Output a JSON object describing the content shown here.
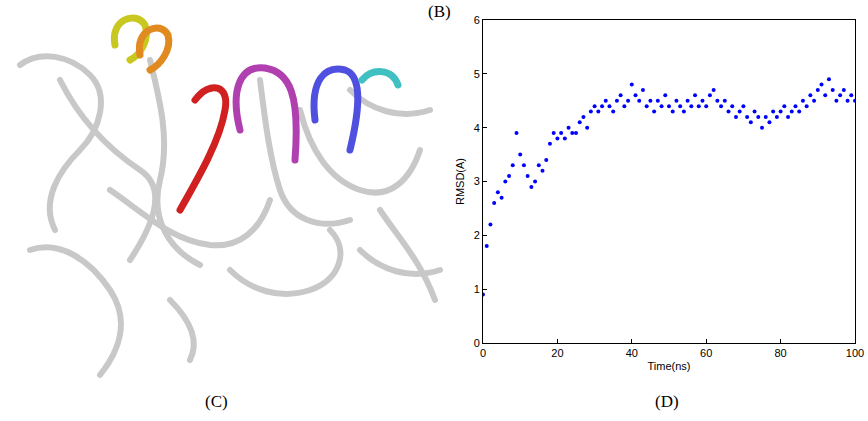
{
  "panel_labels": {
    "top": "(B)",
    "left": "(C)",
    "right": "(D)"
  },
  "chart_data": {
    "type": "scatter",
    "marker": "circle",
    "color": "#0000ff",
    "x_label": "Time(ns)",
    "y_label": "RMSD(A)",
    "x": [
      0,
      1,
      2,
      3,
      4,
      5,
      6,
      7,
      8,
      9,
      10,
      11,
      12,
      13,
      14,
      15,
      16,
      17,
      18,
      19,
      20,
      21,
      22,
      23,
      24,
      25,
      26,
      27,
      28,
      29,
      30,
      31,
      32,
      33,
      34,
      35,
      36,
      37,
      38,
      39,
      40,
      41,
      42,
      43,
      44,
      45,
      46,
      47,
      48,
      49,
      50,
      51,
      52,
      53,
      54,
      55,
      56,
      57,
      58,
      59,
      60,
      61,
      62,
      63,
      64,
      65,
      66,
      67,
      68,
      69,
      70,
      71,
      72,
      73,
      74,
      75,
      76,
      77,
      78,
      79,
      80,
      81,
      82,
      83,
      84,
      85,
      86,
      87,
      88,
      89,
      90,
      91,
      92,
      93,
      94,
      95,
      96,
      97,
      98,
      99,
      100
    ],
    "values": [
      0.9,
      1.8,
      2.2,
      2.6,
      2.8,
      2.7,
      3.0,
      3.1,
      3.3,
      3.9,
      3.5,
      3.3,
      3.1,
      2.9,
      3.0,
      3.3,
      3.2,
      3.4,
      3.7,
      3.9,
      3.8,
      3.9,
      3.8,
      4.0,
      3.9,
      3.9,
      4.1,
      4.2,
      4.0,
      4.3,
      4.4,
      4.3,
      4.4,
      4.5,
      4.4,
      4.3,
      4.5,
      4.6,
      4.4,
      4.5,
      4.8,
      4.6,
      4.5,
      4.7,
      4.4,
      4.5,
      4.3,
      4.5,
      4.4,
      4.6,
      4.4,
      4.3,
      4.5,
      4.4,
      4.3,
      4.5,
      4.4,
      4.6,
      4.4,
      4.5,
      4.4,
      4.6,
      4.7,
      4.5,
      4.4,
      4.5,
      4.3,
      4.4,
      4.2,
      4.3,
      4.4,
      4.2,
      4.1,
      4.3,
      4.2,
      4.0,
      4.2,
      4.1,
      4.3,
      4.2,
      4.3,
      4.4,
      4.2,
      4.3,
      4.4,
      4.3,
      4.5,
      4.4,
      4.6,
      4.5,
      4.7,
      4.8,
      4.6,
      4.9,
      4.7,
      4.5,
      4.6,
      4.7,
      4.5,
      4.6,
      4.5
    ],
    "xlim": [
      0,
      100
    ],
    "xticks": [
      0,
      20,
      40,
      60,
      80,
      100
    ],
    "ylim": [
      0,
      6
    ],
    "yticks": [
      0,
      1,
      2,
      3,
      4,
      5,
      6
    ],
    "grid": false
  }
}
